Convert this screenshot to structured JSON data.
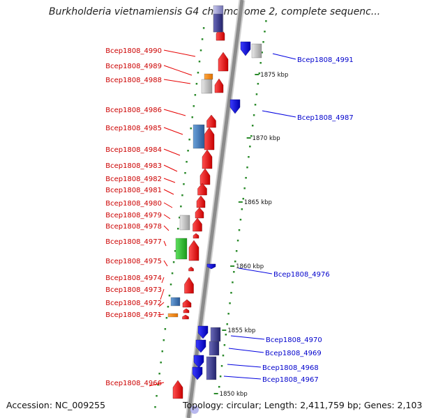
{
  "title": "Burkholderia vietnamiensis G4 chromosome 2, complete sequenc...",
  "accession": "Accession: NC_009255",
  "topology": "Topology: circular; Length: 2,411,759 bp; Genes: 2,103",
  "colors": {
    "forward": "#e60000",
    "reverse": "#0000e0",
    "label_forward": "#cc0000",
    "label_reverse": "#0000cc",
    "backbone": "#8c8c8c",
    "dots": "#2a8a2a"
  },
  "scale_labels": [
    "1875 kbp",
    "1870 kbp",
    "1865 kbp",
    "1860 kbp",
    "1855 kbp",
    "1850 kbp"
  ],
  "genes_forward": [
    "Bcep1808_4990",
    "Bcep1808_4989",
    "Bcep1808_4988",
    "Bcep1808_4986",
    "Bcep1808_4985",
    "Bcep1808_4984",
    "Bcep1808_4983",
    "Bcep1808_4982",
    "Bcep1808_4981",
    "Bcep1808_4980",
    "Bcep1808_4979",
    "Bcep1808_4978",
    "Bcep1808_4977",
    "Bcep1808_4975",
    "Bcep1808_4974",
    "Bcep1808_4973",
    "Bcep1808_4972",
    "Bcep1808_4971",
    "Bcep1808_4966"
  ],
  "genes_reverse": [
    "Bcep1808_4991",
    "Bcep1808_4987",
    "Bcep1808_4976",
    "Bcep1808_4970",
    "Bcep1808_4969",
    "Bcep1808_4968",
    "Bcep1808_4967"
  ]
}
